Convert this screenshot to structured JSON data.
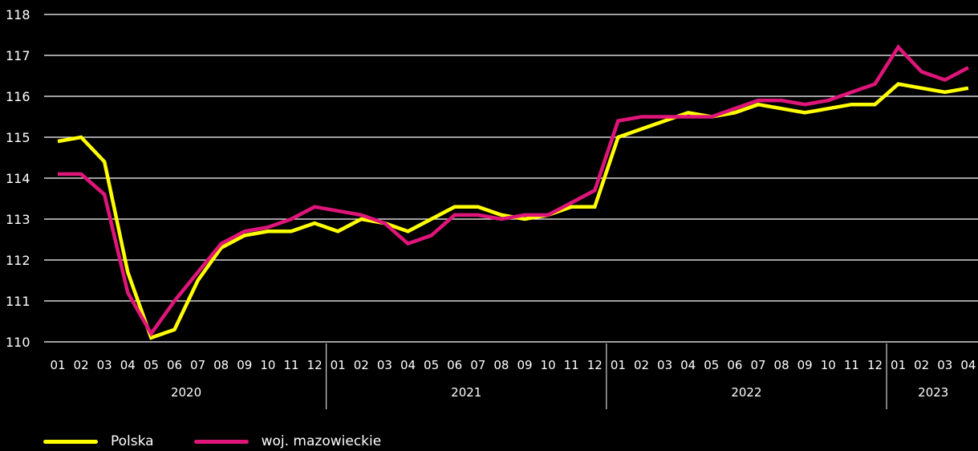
{
  "chart_data": {
    "type": "line",
    "categories": [
      "01",
      "02",
      "03",
      "04",
      "05",
      "06",
      "07",
      "08",
      "09",
      "10",
      "11",
      "12",
      "01",
      "02",
      "03",
      "04",
      "05",
      "06",
      "07",
      "08",
      "09",
      "10",
      "11",
      "12",
      "01",
      "02",
      "03",
      "04",
      "05",
      "06",
      "07",
      "08",
      "09",
      "10",
      "11",
      "12",
      "01",
      "02",
      "03",
      "04"
    ],
    "years": [
      {
        "label": "2020",
        "count": 12
      },
      {
        "label": "2021",
        "count": 12
      },
      {
        "label": "2022",
        "count": 12
      },
      {
        "label": "2023",
        "count": 4
      }
    ],
    "y_ticks": [
      "110",
      "111",
      "112",
      "113",
      "114",
      "115",
      "116",
      "117",
      "118"
    ],
    "ylim": [
      110,
      118
    ],
    "grid": true,
    "legend_position": "bottom-left",
    "series": [
      {
        "name": "Polska",
        "color": "#ffff00",
        "values": [
          114.9,
          115.0,
          114.4,
          111.7,
          110.1,
          110.3,
          111.5,
          112.3,
          112.6,
          112.7,
          112.7,
          112.9,
          112.7,
          113.0,
          112.9,
          112.7,
          113.0,
          113.3,
          113.3,
          113.1,
          113.0,
          113.1,
          113.3,
          113.3,
          115.0,
          115.2,
          115.4,
          115.6,
          115.5,
          115.6,
          115.8,
          115.7,
          115.6,
          115.7,
          115.8,
          115.8,
          116.3,
          116.2,
          116.1,
          116.2
        ]
      },
      {
        "name": "woj. mazowieckie",
        "color": "#e0157a",
        "values": [
          114.1,
          114.1,
          113.6,
          111.2,
          110.2,
          111.0,
          111.7,
          112.4,
          112.7,
          112.8,
          113.0,
          113.3,
          113.2,
          113.1,
          112.9,
          112.4,
          112.6,
          113.1,
          113.1,
          113.0,
          113.1,
          113.1,
          113.4,
          113.7,
          115.4,
          115.5,
          115.5,
          115.5,
          115.5,
          115.7,
          115.9,
          115.9,
          115.8,
          115.9,
          116.1,
          116.3,
          117.2,
          116.6,
          116.4,
          116.7
        ]
      }
    ]
  }
}
